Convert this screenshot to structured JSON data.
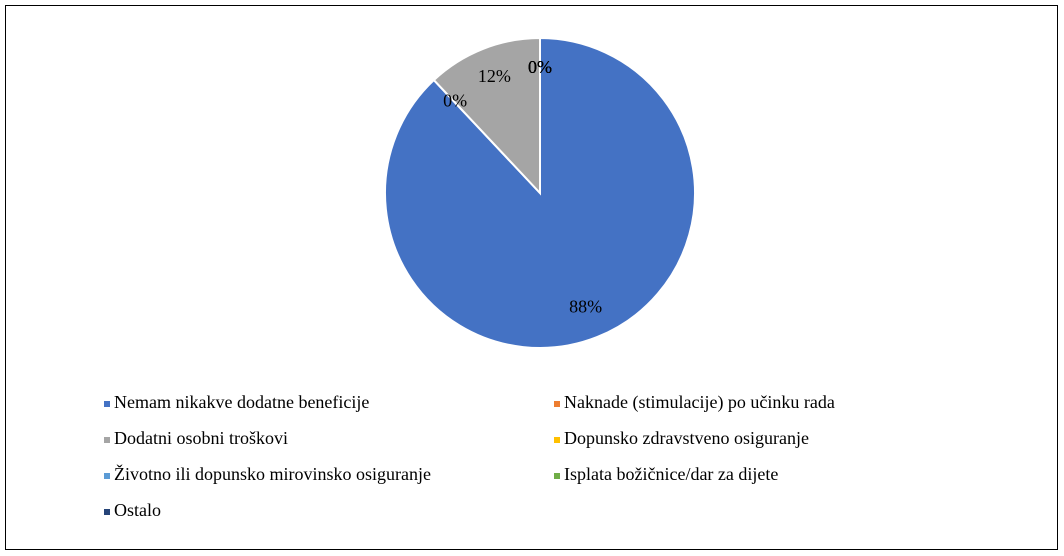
{
  "chart_data": {
    "type": "pie",
    "categories": [
      "Nemam nikakve dodatne beneficije",
      "Naknade (stimulacije) po učinku rada",
      "Dodatni osobni troškovi",
      "Dopunsko zdravstveno osiguranje",
      "Životno ili dopunsko mirovinsko osiguranje",
      "Isplata božičnice/dar za dijete",
      "Ostalo"
    ],
    "values": [
      88,
      0,
      12,
      0,
      0,
      0,
      0
    ],
    "value_labels": [
      "88%",
      "0%",
      "12%",
      "0%",
      "0%",
      "0%",
      "0%"
    ],
    "colors": [
      "#4472c4",
      "#ed7d31",
      "#a5a5a5",
      "#ffc000",
      "#5b9bd5",
      "#70ad47",
      "#264478"
    ],
    "legend": "bottom"
  }
}
